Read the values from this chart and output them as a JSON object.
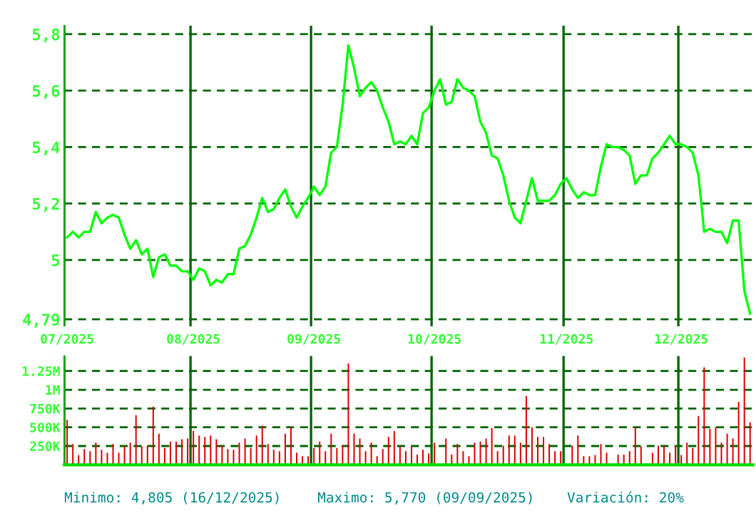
{
  "chart_data": [
    {
      "type": "line",
      "categories": [
        "07/2025",
        null,
        null,
        null,
        null,
        null,
        null,
        null,
        null,
        null,
        null,
        null,
        null,
        null,
        null,
        null,
        null,
        null,
        null,
        null,
        null,
        null,
        "08/2025",
        null,
        null,
        null,
        null,
        null,
        null,
        null,
        null,
        null,
        null,
        null,
        null,
        null,
        null,
        null,
        null,
        null,
        null,
        null,
        null,
        "09/2025",
        null,
        null,
        null,
        null,
        null,
        null,
        null,
        null,
        null,
        null,
        null,
        null,
        null,
        null,
        null,
        null,
        null,
        null,
        null,
        null,
        "10/2025",
        null,
        null,
        null,
        null,
        null,
        null,
        null,
        null,
        null,
        null,
        null,
        null,
        null,
        null,
        null,
        null,
        null,
        null,
        null,
        null,
        null,
        null,
        "11/2025",
        null,
        null,
        null,
        null,
        null,
        null,
        null,
        null,
        null,
        null,
        null,
        null,
        null,
        null,
        null,
        null,
        null,
        null,
        null,
        "12/2025",
        null,
        null,
        null,
        null,
        null,
        null,
        null,
        null,
        null,
        null,
        null,
        null
      ],
      "series": [
        {
          "color": "#00ff00",
          "values": [
            5.08,
            5.1,
            5.08,
            5.1,
            5.1,
            5.17,
            5.13,
            5.15,
            5.16,
            5.15,
            5.09,
            5.04,
            5.07,
            5.02,
            5.04,
            4.94,
            5.01,
            5.02,
            4.98,
            4.98,
            4.96,
            4.96,
            4.93,
            4.97,
            4.96,
            4.91,
            4.93,
            4.92,
            4.95,
            4.95,
            5.04,
            5.05,
            5.09,
            5.15,
            5.22,
            5.17,
            5.18,
            5.22,
            5.25,
            5.19,
            5.15,
            5.19,
            5.22,
            5.26,
            5.23,
            5.26,
            5.38,
            5.4,
            5.55,
            5.76,
            5.68,
            5.58,
            5.61,
            5.63,
            5.6,
            5.54,
            5.49,
            5.41,
            5.42,
            5.41,
            5.44,
            5.41,
            5.52,
            5.54,
            5.6,
            5.64,
            5.55,
            5.56,
            5.64,
            5.61,
            5.6,
            5.58,
            5.49,
            5.45,
            5.37,
            5.36,
            5.3,
            5.21,
            5.15,
            5.13,
            5.21,
            5.29,
            5.21,
            5.21,
            5.21,
            5.23,
            5.27,
            5.29,
            5.25,
            5.22,
            5.24,
            5.23,
            5.23,
            5.33,
            5.41,
            5.4,
            5.4,
            5.39,
            5.37,
            5.27,
            5.3,
            5.3,
            5.36,
            5.38,
            5.41,
            5.44,
            5.41,
            5.41,
            5.4,
            5.38,
            5.3,
            5.1,
            5.11,
            5.1,
            5.1,
            5.06,
            5.14,
            5.14,
            4.89,
            4.81
          ]
        }
      ],
      "ylim": [
        4.76,
        5.83
      ],
      "yticks": [
        {
          "value": 4.79,
          "label": "4,79"
        },
        5,
        {
          "value": 5.2,
          "label": "5,2"
        },
        {
          "value": 5.4,
          "label": "5,4"
        },
        {
          "value": 5.6,
          "label": "5,6"
        },
        {
          "value": 5.8,
          "label": "5,8"
        }
      ],
      "grid": true,
      "annotations": [
        "Minimo: 4,805 (16/12/2025)",
        "Maximo: 5,770 (09/09/2025)",
        "Variación: 20%"
      ]
    },
    {
      "type": "bar",
      "categories": [
        null,
        null,
        null,
        null,
        null,
        null,
        null,
        null,
        null,
        null,
        null,
        null,
        null,
        null,
        null,
        null,
        null,
        null,
        null,
        null,
        null,
        null,
        null,
        null,
        null,
        null,
        null,
        null,
        null,
        null,
        null,
        null,
        null,
        null,
        null,
        null,
        null,
        null,
        null,
        null,
        null,
        null,
        null,
        null,
        null,
        null,
        null,
        null,
        null,
        null,
        null,
        null,
        null,
        null,
        null,
        null,
        null,
        null,
        null,
        null,
        null,
        null,
        null,
        null,
        null,
        null,
        null,
        null,
        null,
        null,
        null,
        null,
        null,
        null,
        null,
        null,
        null,
        null,
        null,
        null,
        null,
        null,
        null,
        null,
        null,
        null,
        null,
        null,
        null,
        null,
        null,
        null,
        null,
        null,
        null,
        null,
        null,
        null,
        null,
        null,
        null,
        null,
        null,
        null,
        null,
        null,
        null,
        null,
        null,
        null,
        null,
        null,
        null,
        null,
        null,
        null,
        null,
        null,
        null,
        null
      ],
      "series": [
        {
          "color": "#dd0000",
          "values": [
            600000,
            275000,
            130000,
            210000,
            180000,
            295000,
            200000,
            160000,
            275000,
            160000,
            255000,
            295000,
            660000,
            245000,
            255000,
            775000,
            415000,
            225000,
            310000,
            310000,
            340000,
            350000,
            455000,
            390000,
            370000,
            390000,
            340000,
            260000,
            210000,
            200000,
            295000,
            350000,
            225000,
            390000,
            520000,
            275000,
            200000,
            180000,
            415000,
            500000,
            160000,
            115000,
            115000,
            225000,
            310000,
            180000,
            415000,
            225000,
            255000,
            1350000,
            415000,
            350000,
            180000,
            295000,
            115000,
            210000,
            370000,
            450000,
            245000,
            180000,
            245000,
            135000,
            200000,
            150000,
            295000,
            null,
            350000,
            135000,
            275000,
            180000,
            115000,
            295000,
            310000,
            350000,
            490000,
            180000,
            255000,
            390000,
            390000,
            295000,
            915000,
            500000,
            370000,
            370000,
            275000,
            180000,
            180000,
            0,
            255000,
            390000,
            115000,
            115000,
            130000,
            275000,
            160000,
            0,
            135000,
            135000,
            180000,
            500000,
            245000,
            0,
            160000,
            255000,
            255000,
            160000,
            255000,
            130000,
            295000,
            225000,
            650000,
            1300000,
            480000,
            500000,
            295000,
            415000,
            350000,
            840000,
            1430000,
            565000
          ]
        }
      ],
      "ylim": [
        0,
        1450000
      ],
      "yticks": [
        {
          "value": 250000,
          "label": "250K"
        },
        {
          "value": 500000,
          "label": "500K"
        },
        {
          "value": 750000,
          "label": "750K"
        },
        {
          "value": 1000000,
          "label": "1M"
        },
        {
          "value": 1250000,
          "label": "1.25M"
        }
      ],
      "grid": true,
      "tick_labels": "y"
    }
  ]
}
